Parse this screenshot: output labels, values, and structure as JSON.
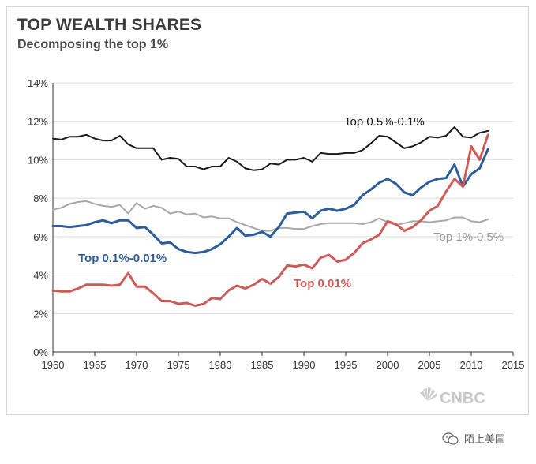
{
  "header": {
    "title": "TOP WEALTH SHARES",
    "subtitle": "Decomposing the top 1%"
  },
  "brand": {
    "logo_text": "CNBC"
  },
  "watermark": {
    "text": "陌上美国"
  },
  "chart_data": {
    "type": "line",
    "title": "TOP WEALTH SHARES",
    "subtitle": "Decomposing the top 1%",
    "xlabel": "",
    "ylabel": "",
    "xlim": [
      1960,
      2015
    ],
    "ylim": [
      0,
      14
    ],
    "x_ticks": [
      1960,
      1965,
      1970,
      1975,
      1980,
      1985,
      1990,
      1995,
      2000,
      2005,
      2010,
      2015
    ],
    "y_ticks": [
      0,
      2,
      4,
      6,
      8,
      10,
      12,
      14
    ],
    "y_tick_labels": [
      "0%",
      "2%",
      "4%",
      "6%",
      "8%",
      "10%",
      "12%",
      "14%"
    ],
    "grid": "horizontal",
    "x": [
      1960,
      1961,
      1962,
      1963,
      1964,
      1965,
      1966,
      1967,
      1968,
      1969,
      1970,
      1971,
      1972,
      1973,
      1974,
      1975,
      1976,
      1977,
      1978,
      1979,
      1980,
      1981,
      1982,
      1983,
      1984,
      1985,
      1986,
      1987,
      1988,
      1989,
      1990,
      1991,
      1992,
      1993,
      1994,
      1995,
      1996,
      1997,
      1998,
      1999,
      2000,
      2001,
      2002,
      2003,
      2004,
      2005,
      2006,
      2007,
      2008,
      2009,
      2010,
      2011,
      2012
    ],
    "series": [
      {
        "name": "Top 0.5%-0.1%",
        "color": "#1a1a1a",
        "label_color": "#1a1a1a",
        "values": [
          11.1,
          11.05,
          11.2,
          11.2,
          11.3,
          11.1,
          11.0,
          11.0,
          11.25,
          10.8,
          10.6,
          10.6,
          10.6,
          10.0,
          10.1,
          10.05,
          9.65,
          9.65,
          9.5,
          9.65,
          9.65,
          10.1,
          9.9,
          9.55,
          9.45,
          9.5,
          9.8,
          9.75,
          10.0,
          10.0,
          10.1,
          9.9,
          10.35,
          10.3,
          10.3,
          10.35,
          10.35,
          10.5,
          10.85,
          11.25,
          11.2,
          10.9,
          10.6,
          10.7,
          10.9,
          11.2,
          11.15,
          11.25,
          11.7,
          11.2,
          11.15,
          11.4,
          11.5
        ]
      },
      {
        "name": "Top 1%-0.5%",
        "color": "#a8a8a8",
        "label_color": "#9a9a9a",
        "values": [
          7.4,
          7.5,
          7.7,
          7.8,
          7.85,
          7.7,
          7.6,
          7.55,
          7.65,
          7.2,
          7.75,
          7.45,
          7.6,
          7.5,
          7.2,
          7.3,
          7.15,
          7.2,
          7.0,
          7.05,
          6.95,
          6.95,
          6.75,
          6.6,
          6.45,
          6.3,
          6.3,
          6.45,
          6.45,
          6.4,
          6.4,
          6.55,
          6.65,
          6.7,
          6.7,
          6.7,
          6.7,
          6.65,
          6.75,
          6.95,
          6.75,
          6.6,
          6.7,
          6.8,
          6.8,
          6.75,
          6.8,
          6.85,
          7.0,
          7.0,
          6.8,
          6.75,
          6.9
        ]
      },
      {
        "name": "Top 0.1%-0.01%",
        "color": "#2d5d9a",
        "label_color": "#2d5d9a",
        "values": [
          6.55,
          6.55,
          6.5,
          6.55,
          6.6,
          6.75,
          6.85,
          6.7,
          6.85,
          6.85,
          6.45,
          6.5,
          6.1,
          5.65,
          5.7,
          5.35,
          5.2,
          5.15,
          5.2,
          5.35,
          5.6,
          6.0,
          6.45,
          6.05,
          6.1,
          6.25,
          6.0,
          6.5,
          7.2,
          7.25,
          7.3,
          6.95,
          7.35,
          7.45,
          7.35,
          7.45,
          7.65,
          8.15,
          8.45,
          8.8,
          9.0,
          8.75,
          8.3,
          8.15,
          8.55,
          8.85,
          9.0,
          9.05,
          9.75,
          8.6,
          9.25,
          9.55,
          10.55
        ]
      },
      {
        "name": "Top 0.01%",
        "color": "#cd5b58",
        "label_color": "#cd5b58",
        "values": [
          3.2,
          3.15,
          3.15,
          3.3,
          3.5,
          3.5,
          3.5,
          3.45,
          3.5,
          4.1,
          3.4,
          3.4,
          3.05,
          2.65,
          2.65,
          2.5,
          2.55,
          2.4,
          2.5,
          2.8,
          2.75,
          3.2,
          3.45,
          3.3,
          3.5,
          3.8,
          3.55,
          3.9,
          4.5,
          4.45,
          4.55,
          4.35,
          4.9,
          5.05,
          4.7,
          4.8,
          5.15,
          5.65,
          5.85,
          6.1,
          6.8,
          6.65,
          6.3,
          6.5,
          6.85,
          7.35,
          7.6,
          8.35,
          9.0,
          8.6,
          10.7,
          10.0,
          11.3
        ]
      }
    ],
    "annotations": [
      {
        "text": "Top 0.5%-0.1%",
        "series": "Top 0.5%-0.1%"
      },
      {
        "text": "Top 1%-0.5%",
        "series": "Top 1%-0.5%"
      },
      {
        "text": "Top 0.1%-0.01%",
        "series": "Top 0.1%-0.01%"
      },
      {
        "text": "Top 0.01%",
        "series": "Top 0.01%"
      }
    ]
  }
}
